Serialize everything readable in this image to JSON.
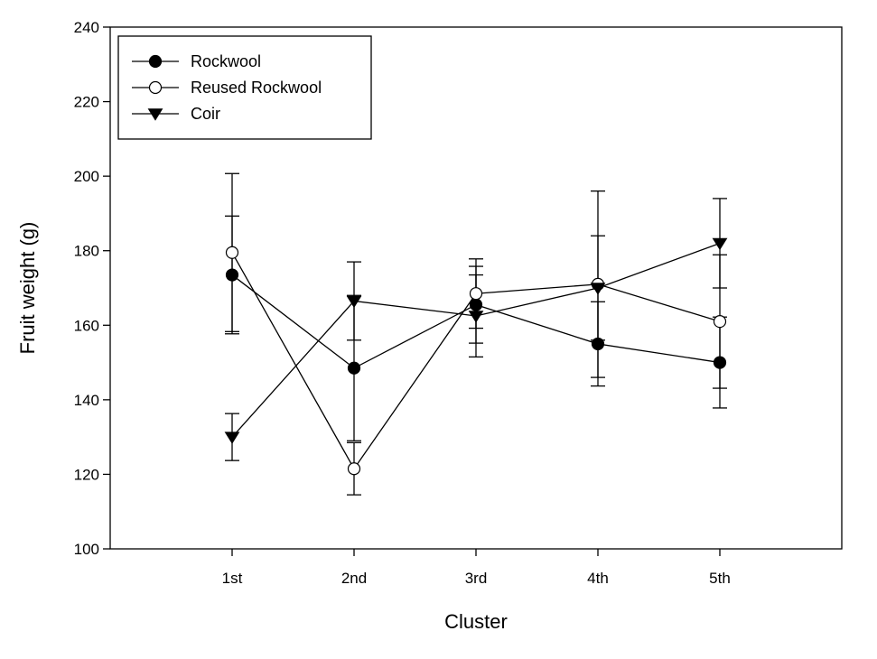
{
  "chart_data": {
    "type": "line",
    "title": "",
    "xlabel": "Cluster",
    "ylabel": "Fruit weight (g)",
    "categories": [
      "1st",
      "2nd",
      "3rd",
      "4th",
      "5th"
    ],
    "ylim": [
      100,
      240
    ],
    "yticks": [
      "100",
      "120",
      "140",
      "160",
      "180",
      "200",
      "220",
      "240"
    ],
    "grid": false,
    "legend_position": "top-left",
    "series": [
      {
        "name": "Rockwool",
        "marker": "filled-circle",
        "values": [
          173.5,
          148.5,
          165.5,
          155.0,
          150.0
        ],
        "error": [
          15.8,
          19.5,
          10.3,
          11.3,
          12.2
        ]
      },
      {
        "name": "Reused Rockwool",
        "marker": "open-circle",
        "values": [
          179.5,
          121.5,
          168.5,
          171.0,
          161.0
        ],
        "error": [
          21.2,
          7.0,
          9.3,
          25.0,
          17.9
        ]
      },
      {
        "name": "Coir",
        "marker": "filled-triangle-down",
        "values": [
          130.0,
          166.5,
          162.5,
          170.0,
          182.0
        ],
        "error": [
          6.3,
          10.5,
          11.0,
          14.0,
          12.0
        ]
      }
    ],
    "colors": {
      "line": "#000000",
      "background": "#ffffff"
    }
  }
}
